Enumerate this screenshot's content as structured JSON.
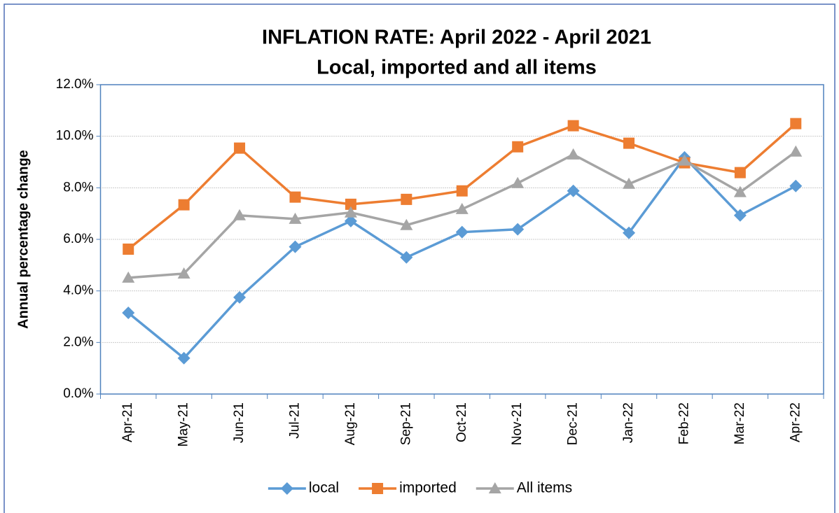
{
  "chart_data": {
    "type": "line",
    "title": "INFLATION RATE: April 2022 - April 2021",
    "subtitle": "Local, imported and all items",
    "y_label": "Annual percentage change",
    "categories": [
      "Apr-21",
      "May-21",
      "Jun-21",
      "Jul-21",
      "Aug-21",
      "Sep-21",
      "Oct-21",
      "Nov-21",
      "Dec-21",
      "Jan-22",
      "Feb-22",
      "Mar-22",
      "Apr-22"
    ],
    "series": [
      {
        "name": "local",
        "color": "#5b9bd5",
        "marker": "diamond",
        "values": [
          3.15,
          1.39,
          3.75,
          5.71,
          6.71,
          5.3,
          6.28,
          6.39,
          7.88,
          6.25,
          9.18,
          6.93,
          8.07
        ]
      },
      {
        "name": "imported",
        "color": "#ed7d31",
        "marker": "square",
        "values": [
          5.62,
          7.34,
          9.54,
          7.64,
          7.36,
          7.55,
          7.88,
          9.59,
          10.41,
          9.73,
          8.97,
          8.59,
          10.49
        ]
      },
      {
        "name": "All items",
        "color": "#a5a5a5",
        "marker": "triangle",
        "values": [
          4.51,
          4.67,
          6.93,
          6.79,
          7.04,
          6.55,
          7.17,
          8.18,
          9.29,
          8.15,
          9.05,
          7.83,
          9.4
        ]
      }
    ],
    "ylim": [
      0,
      12
    ],
    "yticks": [
      {
        "value": 0,
        "label": "0.0%"
      },
      {
        "value": 2,
        "label": "2.0%"
      },
      {
        "value": 4,
        "label": "4.0%"
      },
      {
        "value": 6,
        "label": "6.0%"
      },
      {
        "value": 8,
        "label": "8.0%"
      },
      {
        "value": 10,
        "label": "10.0%"
      },
      {
        "value": 12,
        "label": "12.0%"
      }
    ],
    "grid": true,
    "legend": "bottom"
  }
}
